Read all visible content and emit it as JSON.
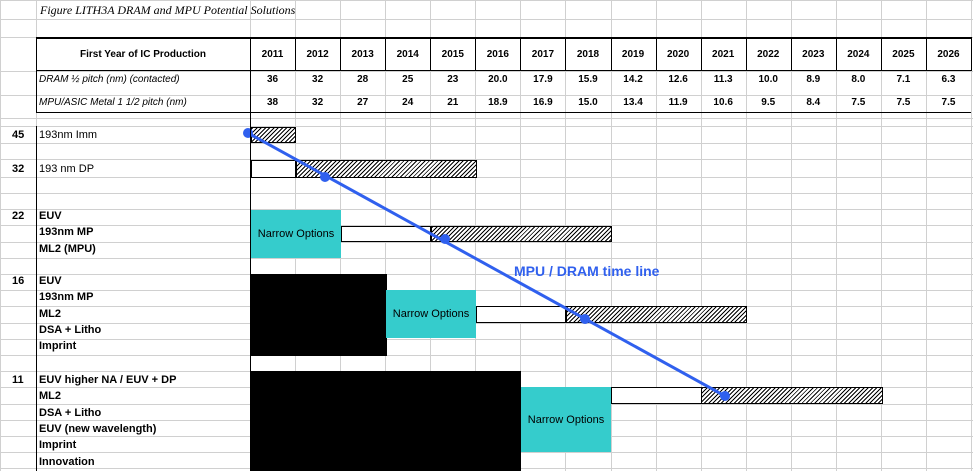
{
  "figure_title": "Figure LITH3A   DRAM and MPU Potential Solutions",
  "header": {
    "label": "First Year of IC Production",
    "years": [
      "2011",
      "2012",
      "2013",
      "2014",
      "2015",
      "2016",
      "2017",
      "2018",
      "2019",
      "2020",
      "2021",
      "2022",
      "2023",
      "2024",
      "2025",
      "2026"
    ]
  },
  "metrics": [
    {
      "label": "DRAM ½ pitch (nm) (contacted)",
      "values": [
        "36",
        "32",
        "28",
        "25",
        "23",
        "20.0",
        "17.9",
        "15.9",
        "14.2",
        "12.6",
        "11.3",
        "10.0",
        "8.9",
        "8.0",
        "7.1",
        "6.3"
      ]
    },
    {
      "label": "MPU/ASIC Metal 1 1/2 pitch (nm)",
      "values": [
        "38",
        "32",
        "27",
        "24",
        "21",
        "18.9",
        "16.9",
        "15.0",
        "13.4",
        "11.9",
        "10.6",
        "9.5",
        "8.4",
        "7.5",
        "7.5",
        "7.5"
      ]
    }
  ],
  "nodes": [
    {
      "node": "45",
      "items": [
        "193nm Imm"
      ],
      "bold": false
    },
    {
      "node": "32",
      "items": [
        "193 nm DP"
      ],
      "bold": false
    },
    {
      "node": "22",
      "items": [
        "EUV",
        "193nm MP",
        "ML2 (MPU)"
      ],
      "bold": true
    },
    {
      "node": "16",
      "items": [
        "EUV",
        "193nm MP",
        "ML2",
        "DSA + Litho",
        "Imprint"
      ],
      "bold": true
    },
    {
      "node": "11",
      "items": [
        "EUV higher NA / EUV + DP",
        "ML2",
        "DSA + Litho",
        "EUV (new wavelength)",
        "Imprint",
        "Innovation"
      ],
      "bold": true
    }
  ],
  "bars": {
    "narrow_options_label": "Narrow Options"
  },
  "timeline": {
    "label": "MPU / DRAM time line",
    "color": "#3060ee"
  },
  "colors": {
    "narrow_options": "#35cccc",
    "research": "#000000"
  }
}
